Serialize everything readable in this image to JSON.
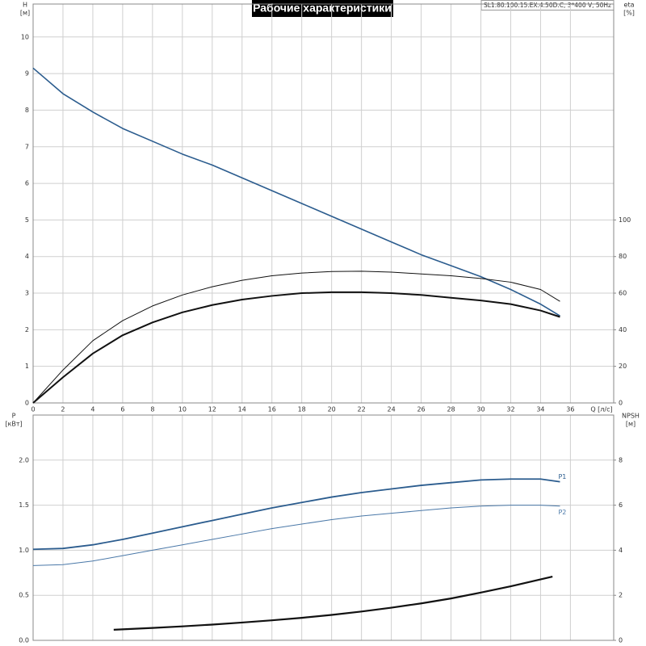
{
  "header": {
    "title": "Рабочие характеристики",
    "model": "SL1.80.100.15.EX.4.50D.C, 3*400 V, 50Hz"
  },
  "chart_data": [
    {
      "type": "line",
      "x_label": "Q [л/с]",
      "y_label": "H",
      "y_unit": "[м]",
      "y2_label": "eta",
      "y2_unit": "[%]",
      "xlim": [
        0,
        38.9
      ],
      "xticks": [
        0,
        2,
        4,
        6,
        8,
        10,
        12,
        14,
        16,
        18,
        20,
        22,
        24,
        26,
        28,
        30,
        32,
        34,
        36
      ],
      "ylim": [
        0,
        10.9
      ],
      "yticks": [
        0,
        1,
        2,
        3,
        4,
        5,
        6,
        7,
        8,
        9,
        10
      ],
      "y2lim": [
        0,
        218
      ],
      "y2ticks": [
        0,
        20,
        40,
        60,
        80,
        100
      ],
      "grid": true,
      "series": [
        {
          "color": "#2b5c8e",
          "line_width": 1.6,
          "x": [
            0,
            2,
            4,
            6,
            8,
            10,
            12,
            14,
            16,
            18,
            20,
            22,
            24,
            26,
            28,
            30,
            32,
            34,
            35.3
          ],
          "values": [
            9.15,
            8.45,
            7.95,
            7.5,
            7.15,
            6.8,
            6.5,
            6.15,
            5.8,
            5.45,
            5.1,
            4.75,
            4.4,
            4.05,
            3.75,
            3.45,
            3.1,
            2.7,
            2.38
          ]
        },
        {
          "color": "#111111",
          "line_width": 1,
          "axis": "y2",
          "x": [
            0,
            2,
            4,
            6,
            8,
            10,
            12,
            14,
            16,
            18,
            20,
            22,
            24,
            26,
            28,
            30,
            32,
            34,
            35.3
          ],
          "values": [
            0,
            18,
            34,
            45,
            53,
            59,
            63.5,
            67,
            69.5,
            71,
            71.8,
            72,
            71.5,
            70.5,
            69.5,
            68,
            66,
            62,
            55.5
          ]
        },
        {
          "color": "#111111",
          "line_width": 2,
          "axis": "y2",
          "x": [
            0,
            2,
            4,
            6,
            8,
            10,
            12,
            14,
            16,
            18,
            20,
            22,
            24,
            26,
            28,
            30,
            32,
            34,
            35.3
          ],
          "values": [
            0,
            14,
            27,
            37,
            44,
            49.5,
            53.5,
            56.5,
            58.5,
            60,
            60.5,
            60.5,
            60,
            59,
            57.5,
            56,
            54,
            50.5,
            47
          ]
        }
      ]
    },
    {
      "type": "line",
      "y_label": "P",
      "y_unit": "[кВт]",
      "y2_label": "NPSH",
      "y2_unit": "[м]",
      "xlim": [
        0,
        38.9
      ],
      "ylim": [
        0,
        2.5
      ],
      "yticks": [
        {
          "value": 0,
          "label": "0.0"
        },
        0.5,
        {
          "value": 1,
          "label": "1.0"
        },
        1.5,
        {
          "value": 2,
          "label": "2.0"
        }
      ],
      "y2lim": [
        0,
        10
      ],
      "y2ticks": [
        0,
        2,
        4,
        6,
        8
      ],
      "grid": true,
      "series": [
        {
          "name": "P1",
          "color": "#2b5c8e",
          "line_width": 1.8,
          "x": [
            0,
            2,
            4,
            6,
            8,
            10,
            12,
            14,
            16,
            18,
            20,
            22,
            24,
            26,
            28,
            30,
            32,
            34,
            35.3
          ],
          "values": [
            1.01,
            1.02,
            1.06,
            1.12,
            1.19,
            1.26,
            1.33,
            1.4,
            1.47,
            1.53,
            1.59,
            1.64,
            1.68,
            1.72,
            1.75,
            1.78,
            1.79,
            1.79,
            1.76
          ]
        },
        {
          "name": "P2",
          "color": "#4a78a8",
          "line_width": 1,
          "x": [
            0,
            2,
            4,
            6,
            8,
            10,
            12,
            14,
            16,
            18,
            20,
            22,
            24,
            26,
            28,
            30,
            32,
            34,
            35.3
          ],
          "values": [
            0.83,
            0.84,
            0.88,
            0.94,
            1.0,
            1.06,
            1.12,
            1.18,
            1.24,
            1.29,
            1.34,
            1.38,
            1.41,
            1.44,
            1.47,
            1.49,
            1.5,
            1.5,
            1.49
          ]
        },
        {
          "color": "#111111",
          "line_width": 2.2,
          "axis": "y2",
          "x": [
            5.4,
            8,
            10,
            12,
            14,
            16,
            18,
            20,
            22,
            24,
            26,
            28,
            30,
            32,
            34.8
          ],
          "values": [
            0.47,
            0.55,
            0.62,
            0.7,
            0.79,
            0.89,
            1.0,
            1.13,
            1.28,
            1.45,
            1.64,
            1.86,
            2.12,
            2.4,
            2.83
          ]
        }
      ]
    }
  ]
}
